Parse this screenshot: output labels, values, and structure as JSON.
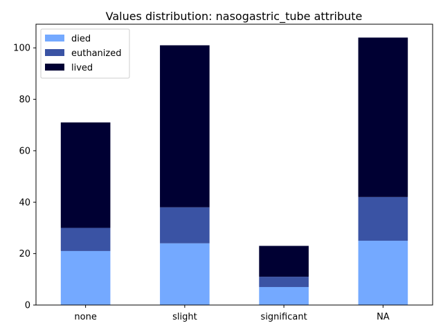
{
  "chart_data": {
    "type": "bar",
    "stacked": true,
    "title": "Values distribution: nasogastric_tube attribute",
    "xlabel": "",
    "ylabel": "",
    "categories": [
      "none",
      "slight",
      "significant",
      "NA"
    ],
    "series": [
      {
        "name": "died",
        "values": [
          21,
          24,
          7,
          25
        ],
        "color": "#74a9ff"
      },
      {
        "name": "euthanized",
        "values": [
          9,
          14,
          4,
          17
        ],
        "color": "#3a53a4"
      },
      {
        "name": "lived",
        "values": [
          41,
          63,
          12,
          62
        ],
        "color": "#000033"
      }
    ],
    "ylim": [
      0,
      109.2
    ],
    "yticks": [
      0,
      20,
      40,
      60,
      80,
      100
    ],
    "grid": false,
    "legend_position": "upper-left"
  }
}
